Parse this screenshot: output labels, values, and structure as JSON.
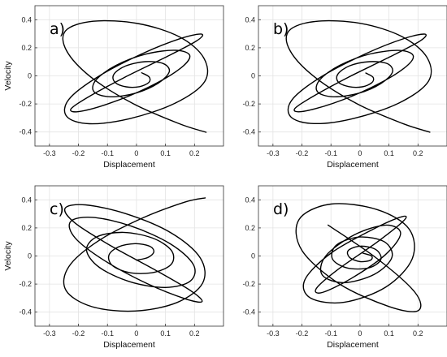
{
  "colors": {
    "trajectory": "#000000",
    "grid": "#e3e3e3",
    "axis": "#333333",
    "background": "#ffffff"
  },
  "chart_data": [
    {
      "type": "line",
      "panel_label": "a)",
      "xlabel": "Displacement",
      "ylabel": "Velocity",
      "xlim": [
        -0.35,
        0.3
      ],
      "ylim": [
        -0.5,
        0.5
      ],
      "xticks": [
        -0.3,
        -0.2,
        -0.1,
        0,
        0.1,
        0.2
      ],
      "yticks": [
        -0.4,
        -0.2,
        0,
        0.2,
        0.4
      ],
      "xtick_labels": [
        "-0.3",
        "-0.2",
        "-0.1",
        "0",
        "0.1",
        "0.2"
      ],
      "ytick_labels": [
        "-0.4",
        "-0.2",
        "0",
        "0.2",
        "0.4"
      ],
      "grid": true,
      "series": [
        {
          "x": [
            0.018,
            0.044,
            0.043,
            0.011,
            -0.036,
            -0.074,
            -0.078,
            -0.038,
            0.03,
            0.092,
            0.113,
            0.075,
            -0.003,
            -0.09,
            -0.146,
            -0.14,
            -0.072,
            0.032,
            0.136,
            0.184,
            0.146,
            0.04,
            -0.092,
            -0.197,
            -0.226,
            -0.164,
            -0.043,
            0.099,
            0.205,
            0.225,
            0.155,
            0.021,
            -0.13,
            -0.233,
            -0.24,
            -0.162,
            -0.024,
            0.132,
            0.235,
            0.232,
            0.148,
            0.005,
            -0.15,
            -0.244,
            -0.241,
            -0.157,
            -0.012,
            0.145,
            0.24
          ],
          "y": [
            0.022,
            -0.008,
            -0.046,
            -0.077,
            -0.078,
            -0.046,
            0.011,
            0.07,
            0.101,
            0.088,
            0.03,
            -0.052,
            -0.123,
            -0.149,
            -0.114,
            -0.03,
            0.073,
            0.155,
            0.182,
            0.142,
            0.045,
            -0.082,
            -0.195,
            -0.254,
            -0.236,
            -0.148,
            -0.013,
            0.131,
            0.246,
            0.297,
            0.268,
            0.159,
            -0.003,
            -0.167,
            -0.29,
            -0.341,
            -0.305,
            -0.196,
            -0.041,
            0.128,
            0.278,
            0.373,
            0.389,
            0.322,
            0.179,
            -0.009,
            -0.197,
            -0.339,
            -0.402
          ]
        }
      ]
    },
    {
      "type": "line",
      "panel_label": "b)",
      "xlabel": "Displacement",
      "ylabel": "",
      "xlim": [
        -0.35,
        0.3
      ],
      "ylim": [
        -0.5,
        0.5
      ],
      "xticks": [
        -0.3,
        -0.2,
        -0.1,
        0,
        0.1,
        0.2
      ],
      "yticks": [
        -0.4,
        -0.2,
        0,
        0.2,
        0.4
      ],
      "xtick_labels": [
        "-0.3",
        "-0.2",
        "-0.1",
        "0",
        "0.1",
        "0.2"
      ],
      "ytick_labels": [
        "-0.4",
        "-0.2",
        "0",
        "0.2",
        "0.4"
      ],
      "grid": true,
      "series": [
        {
          "x": [
            0.02,
            0.045,
            0.041,
            0.008,
            -0.038,
            -0.075,
            -0.076,
            -0.035,
            0.033,
            0.094,
            0.112,
            0.072,
            -0.006,
            -0.093,
            -0.147,
            -0.138,
            -0.069,
            0.035,
            0.138,
            0.184,
            0.144,
            0.037,
            -0.095,
            -0.199,
            -0.225,
            -0.161,
            -0.04,
            0.102,
            0.206,
            0.224,
            0.152,
            0.018,
            -0.133,
            -0.234,
            -0.239,
            -0.159,
            -0.021,
            0.135,
            0.236,
            0.231,
            0.145,
            0.002,
            -0.153,
            -0.245,
            -0.24,
            -0.154,
            -0.009,
            0.148,
            0.241
          ],
          "y": [
            0.02,
            -0.01,
            -0.048,
            -0.078,
            -0.077,
            -0.044,
            0.013,
            0.072,
            0.101,
            0.087,
            0.027,
            -0.055,
            -0.125,
            -0.149,
            -0.112,
            -0.027,
            0.076,
            0.156,
            0.181,
            0.139,
            0.042,
            -0.085,
            -0.197,
            -0.254,
            -0.234,
            -0.145,
            -0.01,
            0.134,
            0.247,
            0.297,
            0.266,
            0.156,
            -0.006,
            -0.17,
            -0.291,
            -0.34,
            -0.303,
            -0.193,
            -0.038,
            0.131,
            0.28,
            0.374,
            0.388,
            0.32,
            0.176,
            -0.012,
            -0.2,
            -0.34,
            -0.401
          ]
        }
      ]
    },
    {
      "type": "line",
      "panel_label": "c)",
      "xlabel": "Displacement",
      "ylabel": "Velocity",
      "xlim": [
        -0.35,
        0.3
      ],
      "ylim": [
        -0.5,
        0.5
      ],
      "xticks": [
        -0.3,
        -0.2,
        -0.1,
        0,
        0.1,
        0.2
      ],
      "yticks": [
        -0.4,
        -0.2,
        0,
        0.2,
        0.4
      ],
      "xtick_labels": [
        "-0.3",
        "-0.2",
        "-0.1",
        "0",
        "0.1",
        "0.2"
      ],
      "ytick_labels": [
        "-0.4",
        "-0.2",
        "0",
        "0.2",
        "0.4"
      ],
      "grid": true,
      "series": [
        {
          "x": [
            0.0,
            0.04,
            0.06,
            0.045,
            -0.005,
            -0.062,
            -0.095,
            -0.082,
            -0.02,
            0.062,
            0.121,
            0.12,
            0.055,
            -0.045,
            -0.136,
            -0.172,
            -0.128,
            -0.022,
            0.1,
            0.186,
            0.196,
            0.117,
            -0.018,
            -0.151,
            -0.227,
            -0.211,
            -0.108,
            0.038,
            0.168,
            0.226,
            0.189,
            0.069,
            -0.088,
            -0.212,
            -0.246,
            -0.176,
            -0.035,
            0.119,
            0.22,
            0.228,
            0.14,
            -0.005,
            -0.153,
            -0.243,
            -0.233,
            -0.129,
            0.026,
            0.167,
            0.237
          ],
          "y": [
            -0.03,
            -0.01,
            0.03,
            0.07,
            0.088,
            0.065,
            0.005,
            -0.07,
            -0.12,
            -0.116,
            -0.056,
            0.04,
            0.128,
            0.168,
            0.137,
            0.042,
            -0.081,
            -0.184,
            -0.224,
            -0.178,
            -0.061,
            0.086,
            0.213,
            0.275,
            0.245,
            0.128,
            -0.036,
            -0.198,
            -0.305,
            -0.325,
            -0.25,
            -0.105,
            0.072,
            0.235,
            0.34,
            0.364,
            0.3,
            0.165,
            -0.014,
            -0.193,
            -0.331,
            -0.392,
            -0.361,
            -0.245,
            -0.075,
            0.111,
            0.275,
            0.384,
            0.414
          ]
        }
      ]
    },
    {
      "type": "line",
      "panel_label": "d)",
      "xlabel": "Displacement",
      "ylabel": "",
      "xlim": [
        -0.35,
        0.3
      ],
      "ylim": [
        -0.5,
        0.5
      ],
      "xticks": [
        -0.3,
        -0.2,
        -0.1,
        0,
        0.1,
        0.2
      ],
      "yticks": [
        -0.4,
        -0.2,
        0,
        0.2,
        0.4
      ],
      "xtick_labels": [
        "-0.3",
        "-0.2",
        "-0.1",
        "0",
        "0.1",
        "0.2"
      ],
      "ytick_labels": [
        "-0.4",
        "-0.2",
        "0",
        "0.2",
        "0.4"
      ],
      "grid": true,
      "series": [
        {
          "x": [
            0.01,
            0.04,
            0.036,
            0.0,
            -0.036,
            -0.04,
            0.002,
            0.055,
            0.072,
            0.03,
            -0.045,
            -0.095,
            -0.08,
            0.0,
            0.085,
            0.11,
            0.05,
            -0.055,
            -0.13,
            -0.118,
            -0.02,
            0.09,
            0.14,
            0.088,
            -0.03,
            -0.13,
            -0.15,
            -0.072,
            0.06,
            0.15,
            0.145,
            0.045,
            -0.1,
            -0.19,
            -0.17,
            -0.055,
            0.09,
            0.18,
            0.17,
            0.06,
            -0.1,
            -0.21,
            -0.2,
            -0.07,
            0.1,
            0.2,
            0.19,
            0.06,
            -0.11
          ],
          "y": [
            0.02,
            0.0,
            -0.03,
            -0.04,
            -0.01,
            0.04,
            0.07,
            0.045,
            -0.025,
            -0.085,
            -0.085,
            -0.02,
            0.08,
            0.135,
            0.1,
            -0.01,
            -0.13,
            -0.19,
            -0.135,
            0.0,
            0.15,
            0.22,
            0.16,
            0.01,
            -0.16,
            -0.26,
            -0.23,
            -0.09,
            0.1,
            0.25,
            0.28,
            0.19,
            0.02,
            -0.17,
            -0.3,
            -0.33,
            -0.22,
            -0.02,
            0.19,
            0.33,
            0.37,
            0.26,
            0.04,
            -0.2,
            -0.36,
            -0.39,
            -0.26,
            -0.02,
            0.22
          ]
        }
      ]
    }
  ]
}
